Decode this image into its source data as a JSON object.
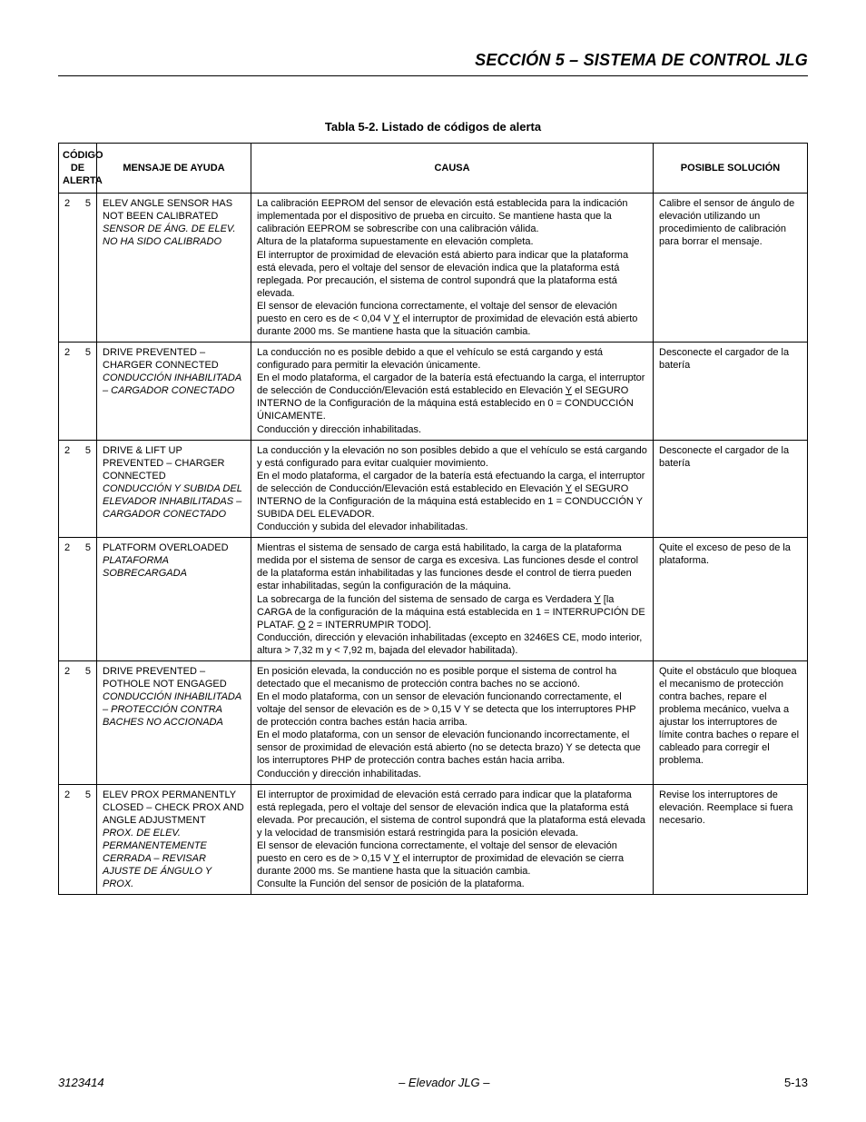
{
  "header": {
    "section_title": "SECCIÓN 5 – SISTEMA DE CONTROL JLG"
  },
  "table": {
    "caption": "Tabla 5-2. Listado de códigos de alerta",
    "columns": {
      "code": "CÓDIGO DE ALERTA",
      "message": "MENSAJE DE AYUDA",
      "cause": "CAUSA",
      "solution": "POSIBLE SOLUCIÓN"
    },
    "rows": [
      {
        "code_a": "2",
        "code_b": "5",
        "msg_en": "ELEV ANGLE SENSOR HAS NOT BEEN CALIBRATED",
        "msg_es": "SENSOR DE ÁNG. DE ELEV. NO HA SIDO CALIBRADO",
        "cause_html": "La calibración EEPROM del sensor de elevación está establecida para la indicación implementada por el dispositivo de prueba en circuito. Se mantiene hasta que la calibración EEPROM se sobrescribe con una calibración válida.<br>Altura de la plataforma supuestamente en elevación completa.<br>El interruptor de proximidad de elevación está abierto para indicar que la plataforma está elevada, pero el voltaje del sensor de elevación indica que la plataforma está replegada. Por precaución, el sistema de control supondrá que la plataforma está elevada.<br>El sensor de elevación funciona correctamente, el voltaje del sensor de elevación puesto en cero es de &lt; 0,04 V <span class=\"under\">Y</span> el interruptor de proximidad de elevación está abierto durante 2000 ms. Se mantiene hasta que la situación cambia.",
        "solution": "Calibre el sensor de ángulo de elevación utilizando un procedimiento de calibración para borrar el mensaje."
      },
      {
        "code_a": "2",
        "code_b": "5",
        "msg_en": "DRIVE PREVENTED – CHARGER CONNECTED",
        "msg_es": "CONDUCCIÓN INHABILITADA – CARGADOR CONECTADO",
        "cause_html": "La conducción no es posible debido a que el vehículo se está cargando y está configurado para permitir la elevación únicamente.<br>En el modo plataforma, el cargador de la batería está efectuando la carga, el interruptor de selección de Conducción/Elevación está establecido en Elevación <span class=\"under\">Y</span> el SEGURO INTERNO de la Configuración de la máquina está establecido en 0 = CONDUCCIÓN ÚNICAMENTE.<br>Conducción y dirección inhabilitadas.",
        "solution": "Desconecte el cargador de la batería"
      },
      {
        "code_a": "2",
        "code_b": "5",
        "msg_en": "DRIVE & LIFT UP PREVENTED – CHARGER CONNECTED",
        "msg_es": "CONDUCCIÓN Y SUBIDA DEL ELEVADOR INHABILITADAS – CARGADOR CONECTADO",
        "cause_html": "La conducción y la elevación no son posibles debido a que el vehículo se está cargando y está configurado para evitar cualquier movimiento.<br>En el modo plataforma, el cargador de la batería está efectuando la carga, el interruptor de selección de Conducción/Elevación está establecido en Elevación <span class=\"under\">Y</span> el SEGURO INTERNO de la Configuración de la máquina está establecido en 1 = CONDUCCIÓN Y SUBIDA DEL ELEVADOR.<br>Conducción y subida del elevador inhabilitadas.",
        "solution": "Desconecte el cargador de la batería"
      },
      {
        "code_a": "2",
        "code_b": "5",
        "msg_en": "PLATFORM OVERLOADED",
        "msg_es": "PLATAFORMA SOBRECARGADA",
        "cause_html": "Mientras el sistema de sensado de carga está habilitado, la carga de la plataforma medida por el sistema de sensor de carga es excesiva. Las funciones desde el control de la plataforma están inhabilitadas y las funciones desde el control de tierra pueden estar inhabilitadas, según la configuración de la máquina.<br>La sobrecarga de la función del sistema de sensado de carga es Verdadera <span class=\"under\">Y</span> [la CARGA de la configuración de la máquina está establecida en 1 = INTERRUPCIÓN DE PLATAF. <span class=\"under\">O</span> 2 = INTERRUMPIR TODO].<br>Conducción, dirección y elevación inhabilitadas (excepto en 3246ES CE, modo interior, altura &gt; 7,32 m y &lt; 7,92 m, bajada del elevador habilitada).",
        "solution": "Quite el exceso de peso de la plataforma."
      },
      {
        "code_a": "2",
        "code_b": "5",
        "msg_en": "DRIVE PREVENTED – POTHOLE NOT ENGAGED",
        "msg_es": "CONDUCCIÓN INHABILITADA – PROTECCIÓN CONTRA BACHES NO ACCIONADA",
        "cause_html": "En posición elevada, la conducción no es posible porque el sistema de control ha detectado que el mecanismo de protección contra baches no se accionó.<br>En el modo plataforma, con un sensor de elevación funcionando correctamente, el voltaje del sensor de elevación es de &gt; 0,15 V Y se detecta que los interruptores PHP de protección contra baches están hacia arriba.<br>En el modo plataforma, con un sensor de elevación funcionando incorrectamente, el sensor de proximidad de elevación está abierto (no se detecta brazo) Y se detecta que los interruptores PHP de protección contra baches están hacia arriba.<br>Conducción y dirección inhabilitadas.",
        "solution": "Quite el obstáculo que bloquea el mecanismo de protección contra baches, repare el problema mecánico, vuelva a ajustar los interruptores de límite contra baches o repare el cableado para corregir el problema."
      },
      {
        "code_a": "2",
        "code_b": "5",
        "msg_en": "ELEV PROX PERMANENTLY CLOSED – CHECK PROX AND ANGLE ADJUSTMENT",
        "msg_es": "PROX. DE ELEV. PERMANENTEMENTE CERRADA – REVISAR AJUSTE DE ÁNGULO Y PROX.",
        "cause_html": "El interruptor de proximidad de elevación está cerrado para indicar que la plataforma está replegada, pero el voltaje del sensor de elevación indica que la plataforma está elevada. Por precaución, el sistema de control supondrá que la plataforma está elevada y la velocidad de transmisión estará restringida para la posición elevada.<br>El sensor de elevación funciona correctamente, el voltaje del sensor de elevación puesto en cero es de &gt; 0,15 V <span class=\"under\">Y</span> el interruptor de proximidad de elevación se cierra durante 2000 ms. Se mantiene hasta que la situación cambia.<br>Consulte la Función del sensor de posición de la plataforma.",
        "solution": "Revise los interruptores de elevación. Reemplace si fuera necesario."
      }
    ]
  },
  "footer": {
    "doc_number": "3123414",
    "center": "– Elevador JLG –",
    "page_number": "5-13"
  }
}
